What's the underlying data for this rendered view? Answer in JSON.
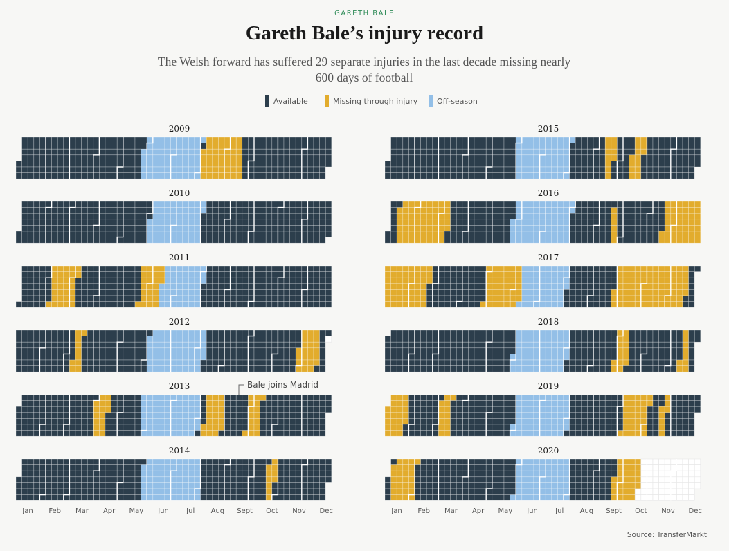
{
  "header": {
    "kicker": "GARETH BALE",
    "title": "Gareth Bale’s injury record",
    "subtitle": "The Welsh forward has suffered 29 separate injuries in the last decade missing nearly 600 days of football"
  },
  "legend": [
    {
      "label": "Available",
      "color": "#2c3e4c"
    },
    {
      "label": "Missing through injury",
      "color": "#e2ac2d"
    },
    {
      "label": "Off-season",
      "color": "#93bfe7"
    }
  ],
  "source": "Source: TransferMarkt",
  "chart_data": {
    "type": "heatmap",
    "description_unit": "one cell per day, columns are weeks, rows are weekdays",
    "months": [
      "Jan",
      "Feb",
      "Mar",
      "Apr",
      "May",
      "Jun",
      "Jul",
      "Aug",
      "Sept",
      "Oct",
      "Nov",
      "Dec"
    ],
    "colors": {
      "available": "#2c3e4c",
      "injury": "#e2ac2d",
      "offseason": "#93bfe7",
      "future": "#ffffff"
    },
    "years": [
      {
        "year": 2009,
        "offseason": [
          [
            145,
            214
          ]
        ],
        "injuries": [
          [
            215,
            262
          ]
        ],
        "end": 365
      },
      {
        "year": 2010,
        "offseason": [
          [
            152,
            214
          ]
        ],
        "injuries": [],
        "end": 365
      },
      {
        "year": 2011,
        "offseason": [
          [
            150,
            214
          ]
        ],
        "injuries": [
          [
            35,
            66
          ],
          [
            140,
            165
          ]
        ],
        "end": 365
      },
      {
        "year": 2012,
        "offseason": [
          [
            155,
            222
          ]
        ],
        "injuries": [
          [
            68,
            78
          ],
          [
            332,
            356
          ]
        ],
        "end": 365
      },
      {
        "year": 2013,
        "offseason": [
          [
            145,
            214
          ]
        ],
        "injuries": [
          [
            90,
            106
          ],
          [
            220,
            242
          ],
          [
            270,
            286
          ]
        ],
        "end": 365
      },
      {
        "year": 2014,
        "offseason": [
          [
            145,
            214
          ]
        ],
        "injuries": [
          [
            292,
            302
          ]
        ],
        "end": 365
      },
      {
        "year": 2015,
        "offseason": [
          [
            150,
            214
          ]
        ],
        "injuries": [
          [
            255,
            266
          ],
          [
            286,
            300
          ]
        ],
        "end": 365
      },
      {
        "year": 2016,
        "offseason": [
          [
            145,
            214
          ]
        ],
        "injuries": [
          [
            10,
            70
          ],
          [
            262,
            268
          ],
          [
            322,
            366
          ]
        ],
        "end": 366
      },
      {
        "year": 2017,
        "offseason": [
          [
            150,
            214
          ]
        ],
        "injuries": [
          [
            0,
            52
          ],
          [
            118,
            160
          ],
          [
            270,
            355
          ]
        ],
        "end": 365
      },
      {
        "year": 2018,
        "offseason": [
          [
            150,
            214
          ]
        ],
        "injuries": [
          [
            270,
            285
          ],
          [
            347,
            356
          ]
        ],
        "end": 365
      },
      {
        "year": 2019,
        "offseason": [
          [
            150,
            214
          ]
        ],
        "injuries": [
          [
            0,
            24
          ],
          [
            62,
            76
          ],
          [
            277,
            308
          ],
          [
            322,
            330
          ]
        ],
        "end": 365
      },
      {
        "year": 2020,
        "offseason": [
          [
            150,
            214
          ]
        ],
        "injuries": [
          [
            5,
            33
          ],
          [
            266,
            296
          ]
        ],
        "end": 296
      }
    ],
    "annotations": [
      {
        "year": 2013,
        "text": "Bale joins Madrid"
      }
    ]
  }
}
